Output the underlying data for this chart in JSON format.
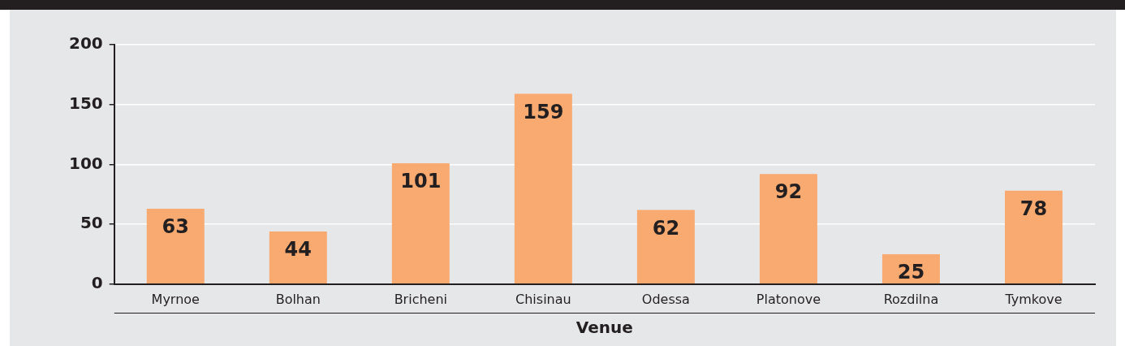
{
  "chart_data": {
    "type": "bar",
    "xlabel": "Venue",
    "categories": [
      "Myrnoe",
      "Bolhan",
      "Bricheni",
      "Chisinau",
      "Odessa",
      "Platonove",
      "Rozdilna",
      "Tymkove"
    ],
    "values": [
      63,
      44,
      101,
      159,
      62,
      92,
      25,
      78
    ],
    "color": "#f8aa70",
    "ylim": [
      0,
      200
    ],
    "yticks": [
      0,
      50,
      100,
      150,
      200
    ],
    "grid": "y",
    "data_labels": true
  }
}
